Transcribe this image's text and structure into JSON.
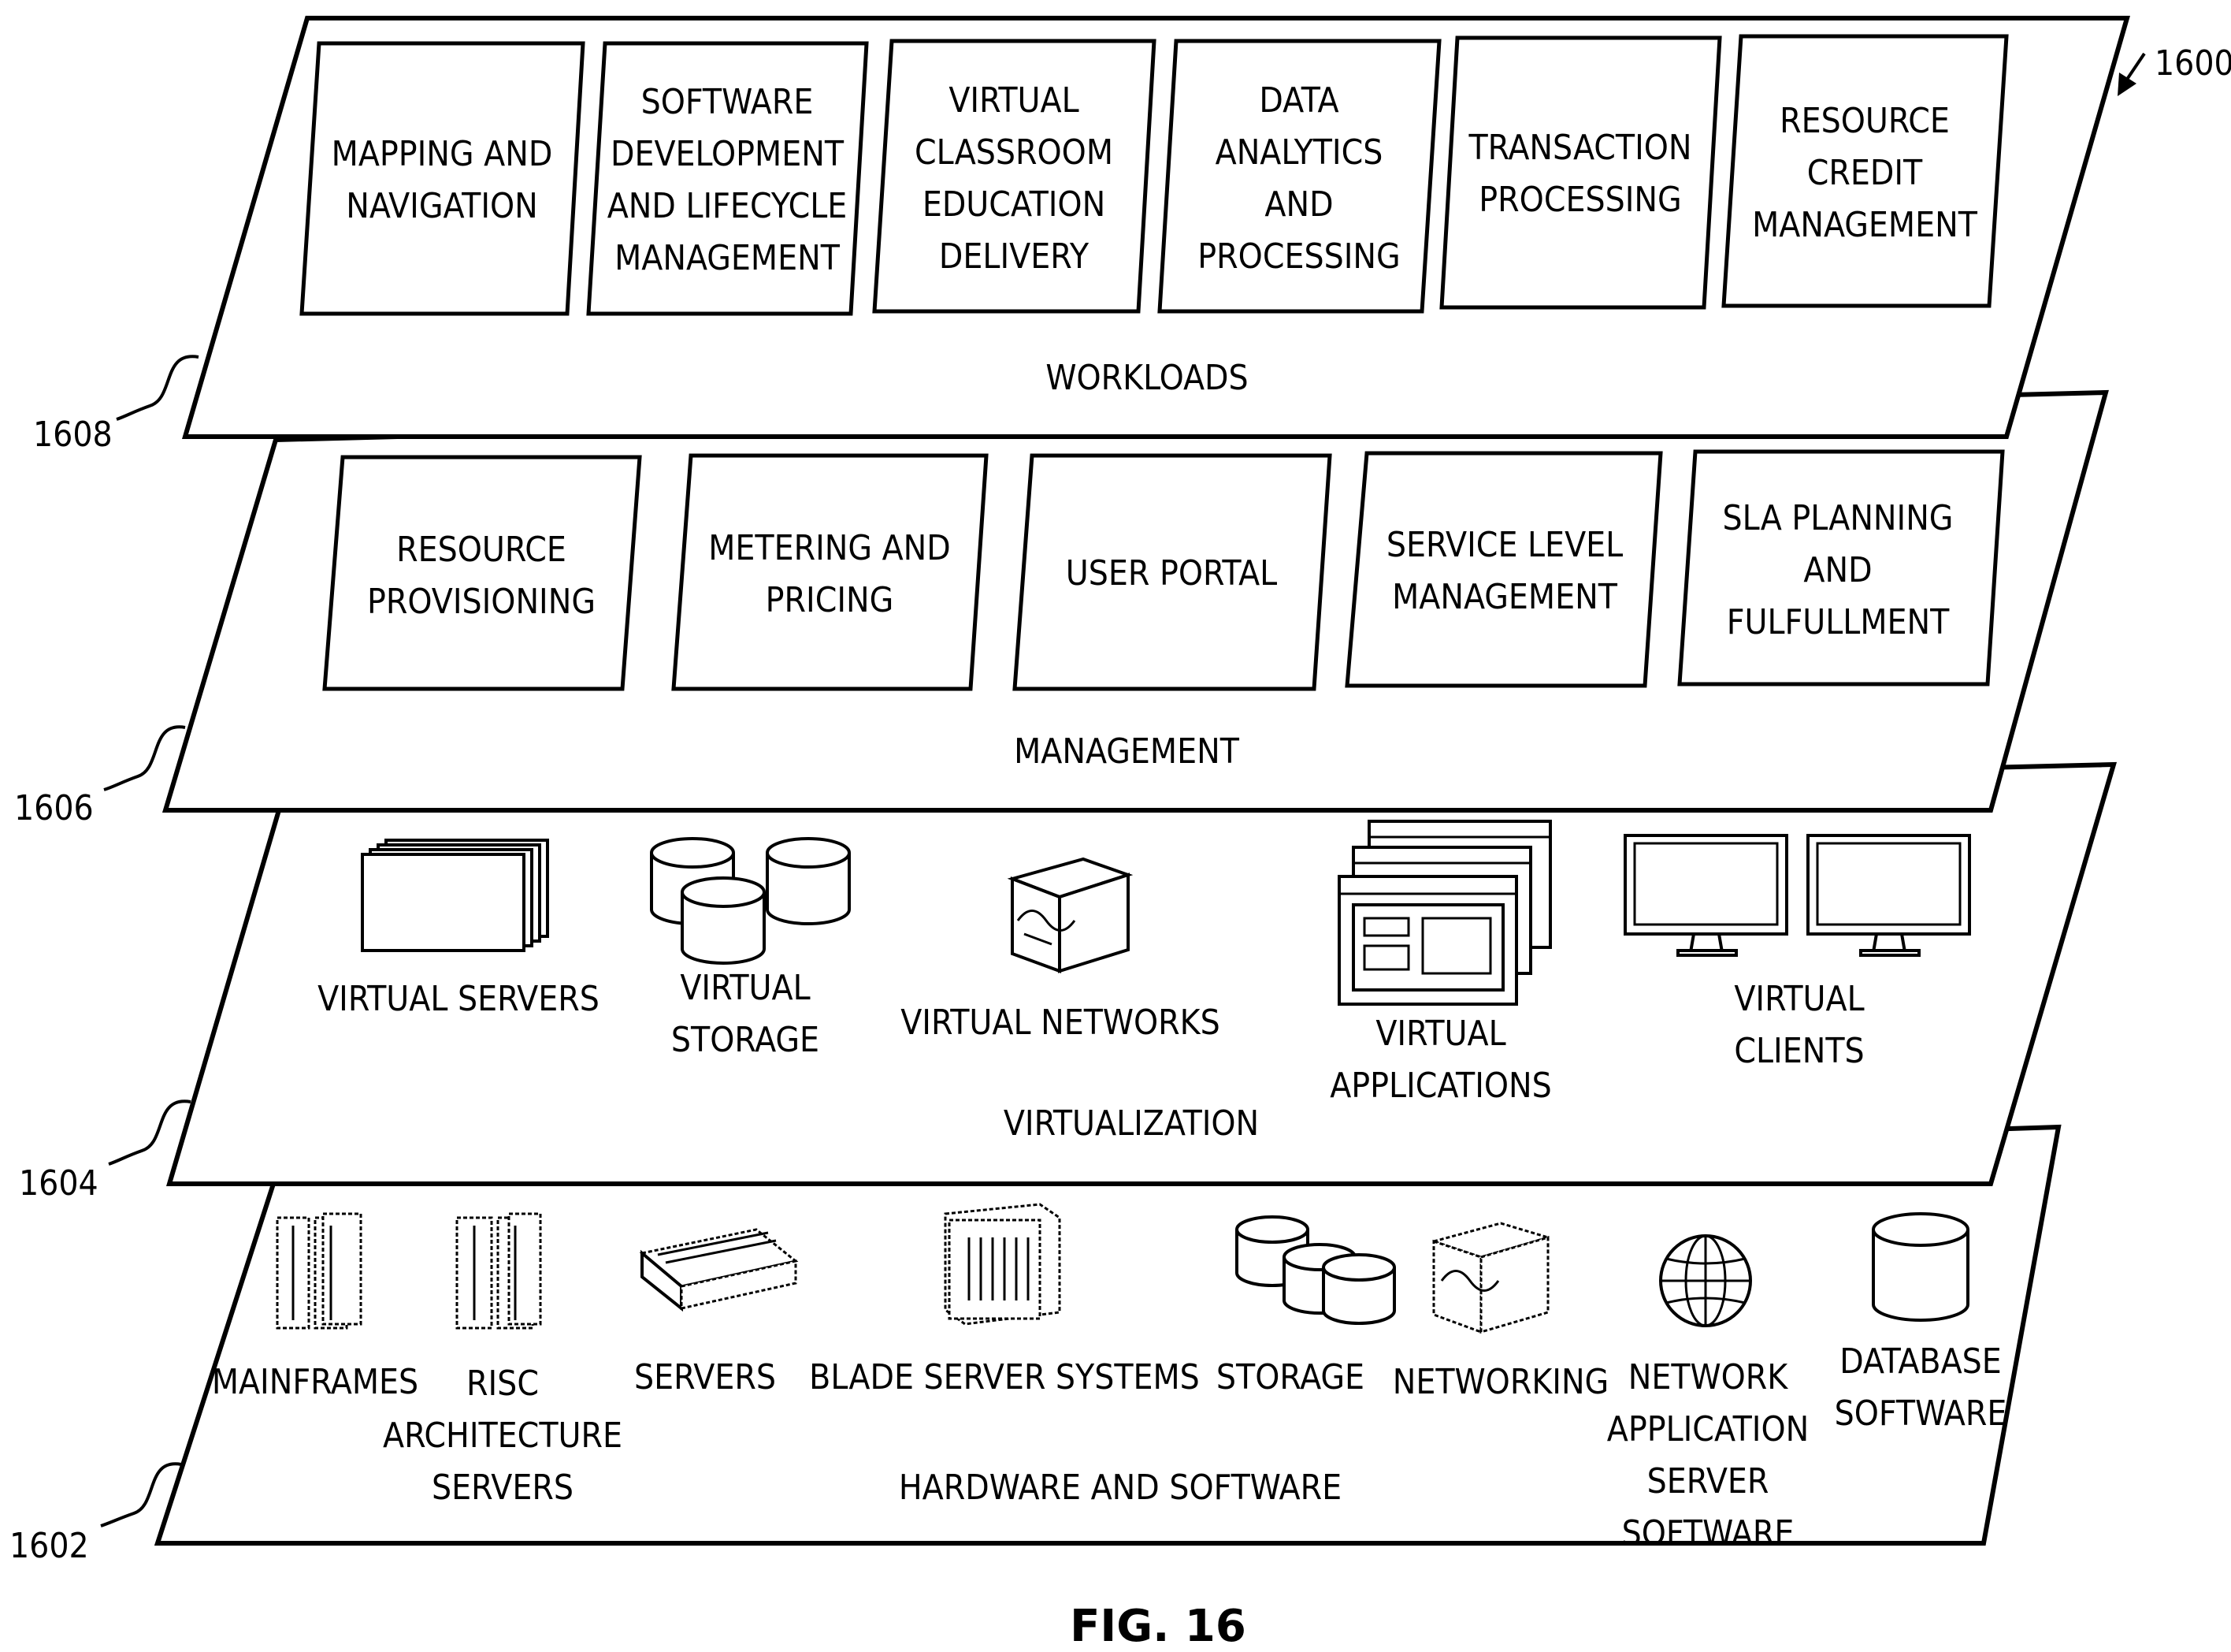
{
  "figure": {
    "ref_overall": "1600",
    "caption": "FIG. 16"
  },
  "workloads": {
    "ref": "1608",
    "title": "WORKLOADS",
    "boxes": [
      [
        "MAPPING AND",
        "NAVIGATION"
      ],
      [
        "SOFTWARE",
        "DEVELOPMENT",
        "AND LIFECYCLE",
        "MANAGEMENT"
      ],
      [
        "VIRTUAL",
        "CLASSROOM",
        "EDUCATION",
        "DELIVERY"
      ],
      [
        "DATA",
        "ANALYTICS",
        "AND",
        "PROCESSING"
      ],
      [
        "TRANSACTION",
        "PROCESSING"
      ],
      [
        "RESOURCE",
        "CREDIT",
        "MANAGEMENT"
      ]
    ]
  },
  "management": {
    "ref": "1606",
    "title": "MANAGEMENT",
    "boxes": [
      [
        "RESOURCE",
        "PROVISIONING"
      ],
      [
        "METERING AND",
        "PRICING"
      ],
      [
        "USER PORTAL"
      ],
      [
        "SERVICE LEVEL",
        "MANAGEMENT"
      ],
      [
        "SLA PLANNING",
        "AND",
        "FULFULLMENT"
      ]
    ]
  },
  "virtualization": {
    "ref": "1604",
    "title": "VIRTUALIZATION",
    "items": [
      {
        "icon": "virtual-servers-icon",
        "label": [
          "VIRTUAL SERVERS"
        ]
      },
      {
        "icon": "virtual-storage-icon",
        "label": [
          "VIRTUAL",
          "STORAGE"
        ]
      },
      {
        "icon": "virtual-networks-icon",
        "label": [
          "VIRTUAL NETWORKS"
        ]
      },
      {
        "icon": "virtual-applications-icon",
        "label": [
          "VIRTUAL",
          "APPLICATIONS"
        ]
      },
      {
        "icon": "virtual-clients-icon",
        "label": [
          "VIRTUAL",
          "CLIENTS"
        ]
      }
    ]
  },
  "hardware": {
    "ref": "1602",
    "title": "HARDWARE AND SOFTWARE",
    "items": [
      {
        "icon": "mainframes-icon",
        "label": [
          "MAINFRAMES"
        ]
      },
      {
        "icon": "risc-server-icon",
        "label": [
          "RISC",
          "ARCHITECTURE",
          "SERVERS"
        ]
      },
      {
        "icon": "servers-icon",
        "label": [
          "SERVERS"
        ]
      },
      {
        "icon": "blade-server-icon",
        "label": [
          "BLADE SERVER SYSTEMS"
        ]
      },
      {
        "icon": "storage-icon",
        "label": [
          "STORAGE"
        ]
      },
      {
        "icon": "networking-icon",
        "label": [
          "NETWORKING"
        ]
      },
      {
        "icon": "globe-icon",
        "label": [
          "NETWORK",
          "APPLICATION",
          "SERVER",
          "SOFTWARE"
        ]
      },
      {
        "icon": "database-icon",
        "label": [
          "DATABASE",
          "SOFTWARE"
        ]
      }
    ]
  }
}
